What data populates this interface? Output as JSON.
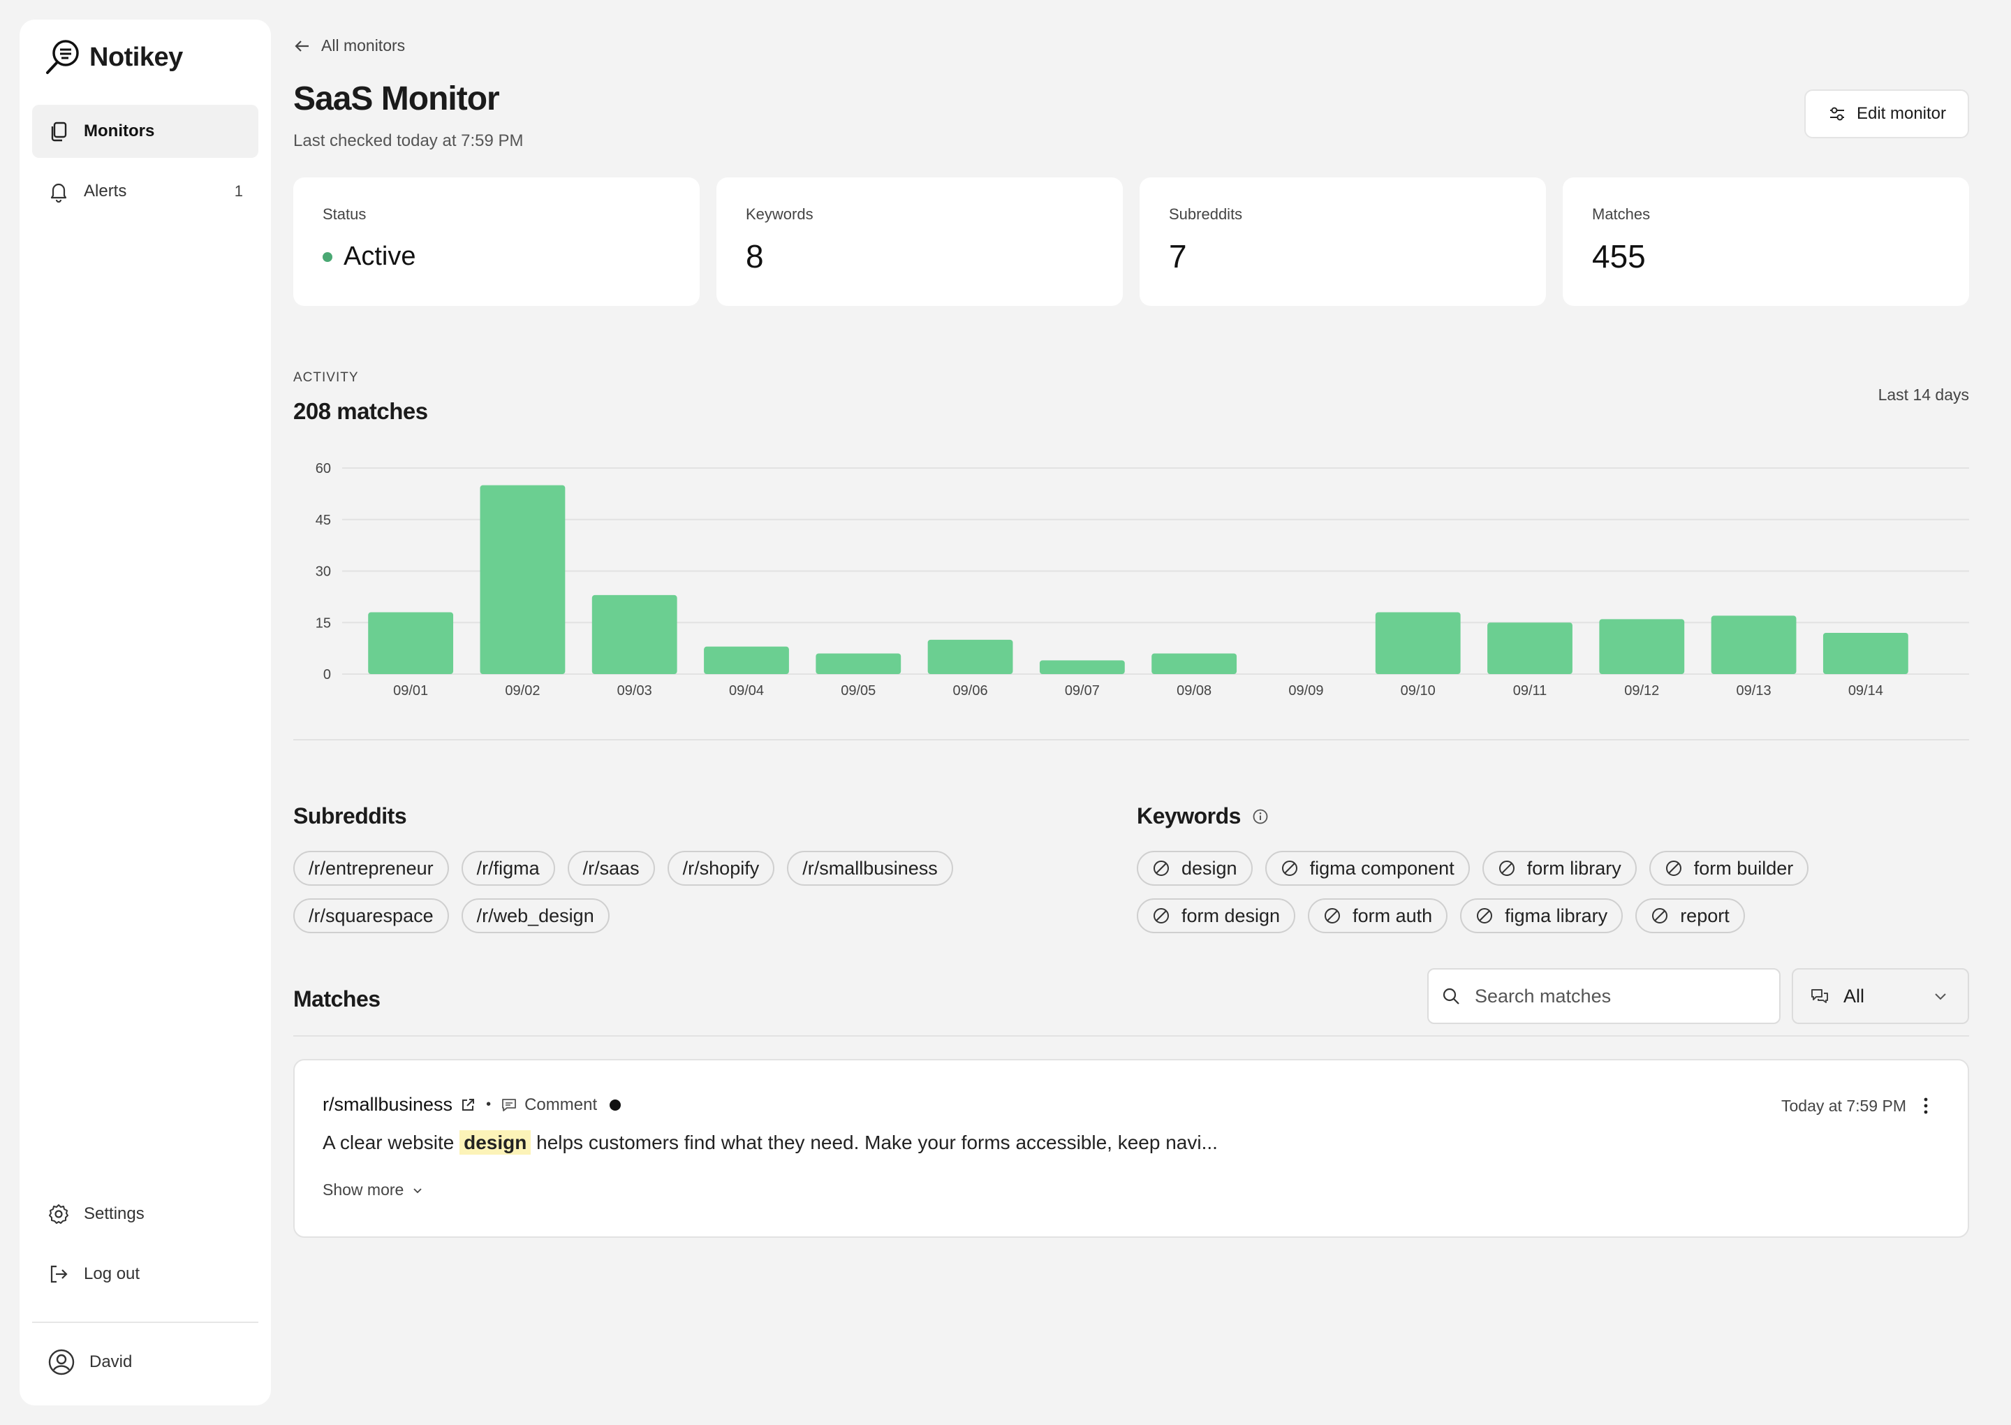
{
  "app": {
    "name": "Notikey"
  },
  "sidebar": {
    "items": [
      {
        "label": "Monitors",
        "icon": "copy-icon",
        "active": true
      },
      {
        "label": "Alerts",
        "icon": "bell-icon",
        "count": "1"
      }
    ],
    "bottom": [
      {
        "label": "Settings",
        "icon": "gear-icon"
      },
      {
        "label": "Log out",
        "icon": "logout-icon"
      }
    ],
    "user": {
      "name": "David",
      "icon": "user-circle-icon"
    }
  },
  "header": {
    "back_label": "All monitors",
    "title": "SaaS Monitor",
    "subtitle": "Last checked today at 7:59 PM",
    "edit_label": "Edit monitor"
  },
  "stats": [
    {
      "label": "Status",
      "value": "Active",
      "color": "#4aa873"
    },
    {
      "label": "Keywords",
      "value": "8"
    },
    {
      "label": "Subreddits",
      "value": "7"
    },
    {
      "label": "Matches",
      "value": "455"
    }
  ],
  "activity": {
    "label": "ACTIVITY",
    "count": "208 matches",
    "range": "Last 14 days"
  },
  "chart_data": {
    "type": "bar",
    "categories": [
      "09/01",
      "09/02",
      "09/03",
      "09/04",
      "09/05",
      "09/06",
      "09/07",
      "09/08",
      "09/09",
      "09/10",
      "09/11",
      "09/12",
      "09/13",
      "09/14"
    ],
    "values": [
      18,
      55,
      23,
      8,
      6,
      10,
      4,
      6,
      0,
      18,
      15,
      16,
      17,
      12
    ],
    "yticks": [
      "0",
      "15",
      "30",
      "45",
      "60"
    ],
    "ylim": [
      0,
      60
    ],
    "grid": true,
    "bar_color": "#6bcf91"
  },
  "subreddits": {
    "title": "Subreddits",
    "items": [
      "/r/entrepreneur",
      "/r/figma",
      "/r/saas",
      "/r/shopify",
      "/r/smallbusiness",
      "/r/squarespace",
      "/r/web_design"
    ]
  },
  "keywords": {
    "title": "Keywords",
    "items": [
      "design",
      "figma component",
      "form library",
      "form builder",
      "form design",
      "form auth",
      "figma library",
      "report"
    ]
  },
  "matches": {
    "title": "Matches",
    "search_placeholder": "Search matches",
    "filter_value": "All",
    "items": [
      {
        "subreddit": "r/smallbusiness",
        "type": "Comment",
        "time": "Today at 7:59 PM",
        "text_before": "A clear website ",
        "highlight": "design",
        "text_after": " helps customers find what they need. Make your forms accessible, keep navi...",
        "show_more": "Show more"
      }
    ]
  }
}
